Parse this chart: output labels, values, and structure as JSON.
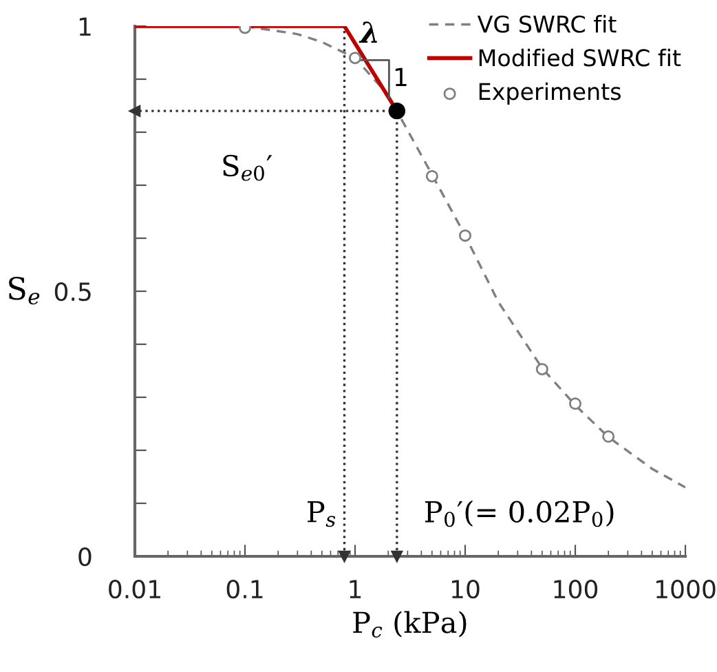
{
  "chart_data": {
    "type": "line",
    "xlabel": "P$_{c}$ (kPa)",
    "ylabel": "S$_{e}$",
    "log": "x",
    "xlim": [
      0.01,
      1000
    ],
    "xticks": [
      0.01,
      0.1,
      1,
      10,
      100,
      1000
    ],
    "ylim": [
      0,
      1
    ],
    "yticks": [
      0,
      {
        "value": 0.1,
        "label": null
      },
      {
        "value": 0.2,
        "label": null
      },
      {
        "value": 0.3,
        "label": null
      },
      {
        "value": 0.4,
        "label": null
      },
      0.5,
      {
        "value": 0.6,
        "label": null
      },
      {
        "value": 0.7,
        "label": null
      },
      {
        "value": 0.8,
        "label": null
      },
      {
        "value": 0.9,
        "label": null
      },
      1
    ],
    "grid": false,
    "legend": "top right",
    "series": [
      {
        "name": "VG SWRC fit",
        "line_style": "dashed",
        "marker": "none",
        "color": "#7f7f7f",
        "x": [
          0.1,
          0.3,
          0.5,
          1,
          2,
          2.4,
          5,
          10,
          20,
          50,
          100,
          200,
          500,
          1000
        ],
        "values": [
          1.0,
          0.985,
          0.97,
          0.94,
          0.87,
          0.84,
          0.72,
          0.605,
          0.48,
          0.355,
          0.285,
          0.225,
          0.165,
          0.13
        ]
      },
      {
        "name": "Modified SWRC fit",
        "line_style": "solid",
        "marker": "none",
        "color": "#c00000",
        "x": [
          0.01,
          0.8,
          2.4
        ],
        "values": [
          1,
          1,
          0.84
        ]
      },
      {
        "name": "Experiments",
        "type": "scatter",
        "marker": "circle",
        "color": "#7f7f7f",
        "x": [
          0.1,
          1,
          5,
          10,
          50,
          100,
          200
        ],
        "values": [
          0.997,
          0.94,
          0.717,
          0.605,
          0.353,
          0.288,
          0.226
        ]
      },
      {
        "type": "lollipop",
        "marker": "circle",
        "line_style": "dotted",
        "color": "#000000",
        "x": [
          2.4
        ],
        "values": [
          0.84
        ]
      }
    ],
    "ref_lines": [
      {
        "axis": "x",
        "value": 0.8,
        "label": "P$_{s}$",
        "line_style": "dotted",
        "color": "#333333"
      }
    ],
    "annotations": [
      "λ",
      "1",
      "S$_{e0}$′",
      "P$_{0}$′(= 0.02P$_{0}$)"
    ]
  }
}
